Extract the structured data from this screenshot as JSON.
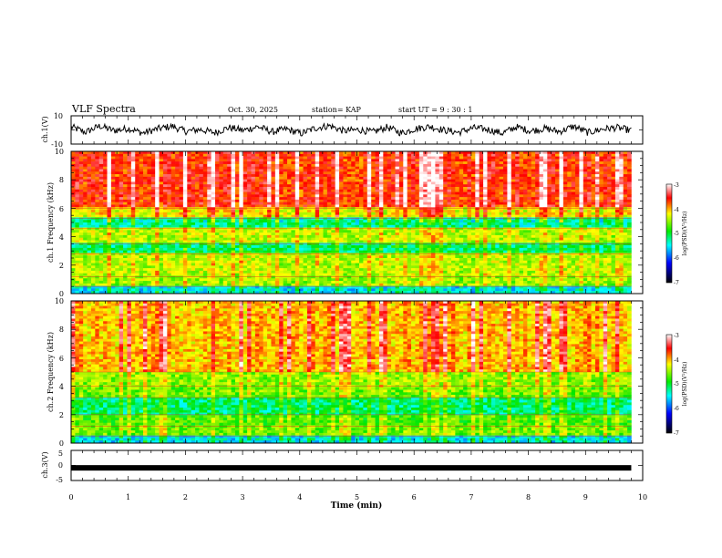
{
  "header": {
    "title": "VLF Spectra",
    "date": "Oct. 30, 2025",
    "station": "station= KAP",
    "start": "start  UT =   9 : 30 : 1"
  },
  "chart_data": [
    {
      "type": "line",
      "panel": "ch1-waveform",
      "ylabel": "ch.1(V)",
      "ylim": [
        -10,
        10
      ],
      "ytick_labels": [
        "10",
        "-10"
      ],
      "x_range_min": [
        0,
        9.8
      ],
      "series": [
        {
          "name": "ch.1",
          "values": [
            2.4,
            -1.8,
            3.1,
            -0.6,
            1.2,
            -2.5,
            0.8,
            2.9,
            -1.1,
            0.3,
            -2.2,
            1.9,
            -0.4,
            2.6,
            -1.5,
            0.6,
            -2.8,
            1.4,
            3.3,
            -0.9,
            0.2,
            -1.7,
            2.1,
            -2.4,
            1.0,
            2.7,
            -0.3,
            -1.9,
            1.6,
            0.4,
            -2.6,
            2.3,
            -0.8,
            1.1,
            -1.3,
            2.8,
            -2.1,
            0.7,
            1.8,
            -0.5
          ]
        }
      ]
    },
    {
      "type": "heatmap",
      "panel": "ch1-spectrogram",
      "ylabel": "ch.1 Frequency (kHz)",
      "ylim": [
        0,
        10
      ],
      "ytick_labels": [
        "0",
        "2",
        "4",
        "6",
        "8",
        "10"
      ],
      "x_range_min": [
        0,
        9.8
      ],
      "colorbar": {
        "label": "log(PSD)(V²/Hz)",
        "range": [
          -7,
          -3
        ],
        "tick_labels": [
          "-3",
          "-4",
          "-5",
          "-6",
          "-7"
        ]
      },
      "profile_db": {
        "0-0.5kHz": -5.5,
        "0.5-1.2kHz": -4.6,
        "1.2-2.8kHz": -4.5,
        "2.8-3.5kHz": -5.2,
        "3.5-4.6kHz": -4.5,
        "4.6-5.3kHz": -5.3,
        "5.3-6kHz": -4.3,
        "6-10kHz": -3.7
      }
    },
    {
      "type": "heatmap",
      "panel": "ch2-spectrogram",
      "ylabel": "ch.2 Frequency (kHz)",
      "ylim": [
        0,
        10
      ],
      "ytick_labels": [
        "0",
        "2",
        "4",
        "6",
        "8",
        "10"
      ],
      "x_range_min": [
        0,
        9.8
      ],
      "colorbar": {
        "label": "log(PSD)(V²/Hz)",
        "range": [
          -7,
          -3
        ],
        "tick_labels": [
          "-3",
          "-4",
          "-5",
          "-6",
          "-7"
        ]
      },
      "profile_db": {
        "0-0.5kHz": -5.5,
        "0.5-1.2kHz": -4.7,
        "1.2-2kHz": -4.8,
        "2-3.2kHz": -5.2,
        "3.2-4kHz": -4.7,
        "4-5kHz": -4.6,
        "5-10kHz": -4.1
      }
    },
    {
      "type": "line",
      "panel": "ch3-waveform",
      "ylabel": "ch.3(V)",
      "ylim": [
        -5,
        5
      ],
      "ytick_labels": [
        "5",
        "0",
        "-5"
      ],
      "x_range_min": [
        0,
        9.8
      ],
      "series": [
        {
          "name": "ch.3",
          "values": [
            -0.8,
            -0.8
          ]
        }
      ]
    }
  ],
  "xaxis": {
    "label": "Time (min)",
    "range": [
      0,
      10
    ],
    "tick_labels": [
      "0",
      "1",
      "2",
      "3",
      "4",
      "5",
      "6",
      "7",
      "8",
      "9",
      "10"
    ]
  },
  "colors": {
    "axis": "#000000",
    "trace": "#000000"
  }
}
